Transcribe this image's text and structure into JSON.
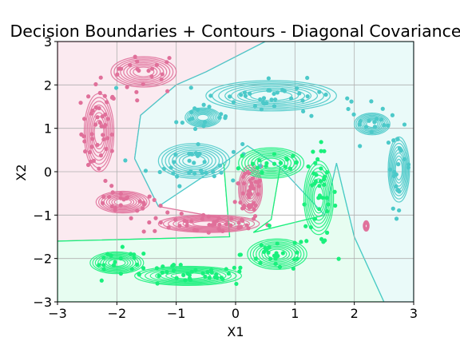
{
  "chart_data": {
    "type": "scatter",
    "title": "Decision Boundaries + Contours - Diagonal Covariance",
    "xlabel": "X1",
    "ylabel": "X2",
    "xlim": [
      -3,
      3
    ],
    "ylim": [
      -3,
      3
    ],
    "xticks": [
      "−3",
      "−2",
      "−1",
      "0",
      "1",
      "2",
      "3"
    ],
    "yticks": [
      "−3",
      "−2",
      "−1",
      "0",
      "1",
      "2",
      "3"
    ],
    "grid": true,
    "colors": {
      "pink": "#e0709a",
      "cyan": "#4cc9c9",
      "green": "#19f07c",
      "pink_region": "#fbeaf0",
      "cyan_region": "#eafaf9",
      "green_region": "#e7fdf1"
    },
    "regions": [
      {
        "class": "pink",
        "polygon": [
          [
            -3,
            3
          ],
          [
            0.5,
            3
          ],
          [
            -0.5,
            2.3
          ],
          [
            -1.0,
            2.0
          ],
          [
            -1.6,
            1.3
          ],
          [
            -1.7,
            0.3
          ],
          [
            -1.3,
            -0.8
          ],
          [
            -0.3,
            -1.05
          ],
          [
            0.3,
            -1.4
          ],
          [
            0.6,
            -1.1
          ],
          [
            0.75,
            0.1
          ],
          [
            0.2,
            0.6
          ],
          [
            -0.2,
            0.2
          ],
          [
            -0.1,
            -1.5
          ],
          [
            -3,
            -1.6
          ]
        ]
      },
      {
        "class": "green",
        "polygon": [
          [
            -3,
            -1.6
          ],
          [
            -0.1,
            -1.5
          ],
          [
            -0.2,
            0.2
          ],
          [
            0.2,
            0.6
          ],
          [
            0.75,
            0.1
          ],
          [
            0.6,
            -1.1
          ],
          [
            0.3,
            -1.4
          ],
          [
            1.5,
            -1.0
          ],
          [
            1.7,
            0.2
          ],
          [
            2.0,
            -1.5
          ],
          [
            2.5,
            -3
          ],
          [
            -3,
            -3
          ]
        ]
      },
      {
        "class": "cyan",
        "polygon": [
          [
            0.5,
            3
          ],
          [
            3,
            3
          ],
          [
            3,
            -3
          ],
          [
            2.5,
            -3
          ],
          [
            2.0,
            -1.5
          ],
          [
            1.7,
            0.2
          ],
          [
            1.5,
            -1.0
          ],
          [
            0.75,
            0.1
          ],
          [
            0.2,
            0.6
          ],
          [
            -0.2,
            0.2
          ],
          [
            -1.3,
            -0.8
          ],
          [
            -1.7,
            0.3
          ],
          [
            -1.6,
            1.3
          ],
          [
            -1.0,
            2.0
          ],
          [
            -0.5,
            2.3
          ]
        ]
      }
    ],
    "clusters": [
      {
        "class": "pink",
        "cx": -1.55,
        "cy": 2.3,
        "sx": 0.35,
        "sy": 0.25,
        "n": 22
      },
      {
        "class": "pink",
        "cx": -2.3,
        "cy": 0.9,
        "sx": 0.15,
        "sy": 0.55,
        "n": 45
      },
      {
        "class": "pink",
        "cx": -1.9,
        "cy": -0.7,
        "sx": 0.3,
        "sy": 0.15,
        "n": 22
      },
      {
        "class": "pink",
        "cx": -0.5,
        "cy": -1.2,
        "sx": 0.55,
        "sy": 0.12,
        "n": 45
      },
      {
        "class": "pink",
        "cx": 0.25,
        "cy": -0.4,
        "sx": 0.12,
        "sy": 0.35,
        "n": 35
      },
      {
        "class": "cyan",
        "cx": 0.6,
        "cy": 1.7,
        "sx": 0.75,
        "sy": 0.2,
        "n": 45
      },
      {
        "class": "cyan",
        "cx": -0.7,
        "cy": 0.2,
        "sx": 0.4,
        "sy": 0.25,
        "n": 35
      },
      {
        "class": "cyan",
        "cx": -0.6,
        "cy": 1.2,
        "sx": 0.2,
        "sy": 0.15,
        "n": 12
      },
      {
        "class": "cyan",
        "cx": 2.3,
        "cy": 1.1,
        "sx": 0.2,
        "sy": 0.15,
        "n": 14
      },
      {
        "class": "cyan",
        "cx": 2.75,
        "cy": 0.1,
        "sx": 0.1,
        "sy": 0.45,
        "n": 20
      },
      {
        "class": "green",
        "cx": 1.4,
        "cy": -0.6,
        "sx": 0.15,
        "sy": 0.55,
        "n": 40
      },
      {
        "class": "green",
        "cx": 0.6,
        "cy": 0.2,
        "sx": 0.35,
        "sy": 0.2,
        "n": 20
      },
      {
        "class": "green",
        "cx": 0.7,
        "cy": -1.9,
        "sx": 0.3,
        "sy": 0.2,
        "n": 25
      },
      {
        "class": "green",
        "cx": -0.8,
        "cy": -2.4,
        "sx": 0.55,
        "sy": 0.12,
        "n": 40
      },
      {
        "class": "green",
        "cx": -2.0,
        "cy": -2.1,
        "sx": 0.3,
        "sy": 0.15,
        "n": 18
      }
    ],
    "contours": [
      {
        "class": "pink",
        "cx": -1.55,
        "cy": 2.3,
        "rx": 0.55,
        "ry": 0.35
      },
      {
        "class": "pink",
        "cx": -2.3,
        "cy": 0.9,
        "rx": 0.25,
        "ry": 0.9
      },
      {
        "class": "pink",
        "cx": -1.9,
        "cy": -0.7,
        "rx": 0.45,
        "ry": 0.25
      },
      {
        "class": "pink",
        "cx": -0.45,
        "cy": -1.2,
        "rx": 0.85,
        "ry": 0.2
      },
      {
        "class": "pink",
        "cx": 0.25,
        "cy": -0.4,
        "rx": 0.2,
        "ry": 0.55
      },
      {
        "class": "pink",
        "cx": 2.2,
        "cy": -1.25,
        "rx": 0.05,
        "ry": 0.12
      },
      {
        "class": "cyan",
        "cx": 0.6,
        "cy": 1.75,
        "rx": 1.1,
        "ry": 0.35
      },
      {
        "class": "cyan",
        "cx": -0.7,
        "cy": 0.25,
        "rx": 0.6,
        "ry": 0.4
      },
      {
        "class": "cyan",
        "cx": -0.55,
        "cy": 1.25,
        "rx": 0.3,
        "ry": 0.22
      },
      {
        "class": "cyan",
        "cx": 2.3,
        "cy": 1.1,
        "rx": 0.3,
        "ry": 0.25
      },
      {
        "class": "cyan",
        "cx": 2.75,
        "cy": 0.05,
        "rx": 0.18,
        "ry": 0.75
      },
      {
        "class": "green",
        "cx": 1.4,
        "cy": -0.6,
        "rx": 0.25,
        "ry": 0.85
      },
      {
        "class": "green",
        "cx": 0.6,
        "cy": 0.2,
        "rx": 0.55,
        "ry": 0.35
      },
      {
        "class": "green",
        "cx": 0.7,
        "cy": -1.9,
        "rx": 0.5,
        "ry": 0.35
      },
      {
        "class": "green",
        "cx": -0.8,
        "cy": -2.4,
        "rx": 0.9,
        "ry": 0.22
      },
      {
        "class": "green",
        "cx": -2.0,
        "cy": -2.1,
        "rx": 0.45,
        "ry": 0.25
      }
    ]
  }
}
